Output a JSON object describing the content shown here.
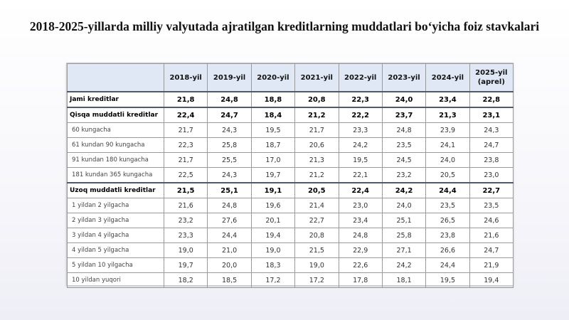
{
  "title": "2018-2025-yillarda milliy valyutada ajratilgan kreditlarning muddatlari bo‘yicha foiz stavkalari",
  "table": {
    "columns": [
      "2018-yil",
      "2019-yil",
      "2020-yil",
      "2021-yil",
      "2022-yil",
      "2023-yil",
      "2024-yil"
    ],
    "last_column": {
      "line1": "2025-yil",
      "line2": "(aprel)"
    },
    "rows": [
      {
        "label": "Jami kreditlar",
        "type": "total",
        "values": [
          "21,8",
          "24,8",
          "18,8",
          "20,8",
          "22,3",
          "24,0",
          "23,4",
          "22,8"
        ]
      },
      {
        "label": "Qisqa muddatli kreditlar",
        "type": "section",
        "values": [
          "22,4",
          "24,7",
          "18,4",
          "21,2",
          "22,2",
          "23,7",
          "21,3",
          "23,1"
        ]
      },
      {
        "label": "60 kungacha",
        "type": "item",
        "values": [
          "21,7",
          "24,3",
          "19,5",
          "21,7",
          "23,3",
          "24,8",
          "23,9",
          "24,3"
        ]
      },
      {
        "label": "61 kundan 90 kungacha",
        "type": "item",
        "values": [
          "22,3",
          "25,8",
          "18,7",
          "20,6",
          "24,2",
          "23,5",
          "24,1",
          "24,7"
        ]
      },
      {
        "label": "91 kundan 180 kungacha",
        "type": "item",
        "values": [
          "21,7",
          "25,5",
          "17,0",
          "21,3",
          "19,5",
          "24,5",
          "24,0",
          "23,8"
        ]
      },
      {
        "label": "181 kundan 365 kungacha",
        "type": "item",
        "values": [
          "22,5",
          "24,3",
          "19,7",
          "21,2",
          "22,1",
          "23,2",
          "20,5",
          "23,0"
        ]
      },
      {
        "label": "Uzoq muddatli kreditlar",
        "type": "section",
        "values": [
          "21,5",
          "25,1",
          "19,1",
          "20,5",
          "22,4",
          "24,2",
          "24,4",
          "22,7"
        ]
      },
      {
        "label": "1 yildan 2 yilgacha",
        "type": "item",
        "values": [
          "21,6",
          "24,8",
          "19,6",
          "21,4",
          "23,0",
          "24,0",
          "23,5",
          "23,5"
        ]
      },
      {
        "label": "2 yildan 3 yilgacha",
        "type": "item",
        "values": [
          "23,2",
          "27,6",
          "20,1",
          "22,7",
          "23,4",
          "25,1",
          "26,5",
          "24,6"
        ]
      },
      {
        "label": "3 yildan 4 yilgacha",
        "type": "item",
        "values": [
          "23,3",
          "24,4",
          "19,4",
          "20,8",
          "24,8",
          "25,8",
          "23,8",
          "21,6"
        ]
      },
      {
        "label": "4 yildan 5 yilgacha",
        "type": "item",
        "values": [
          "19,0",
          "21,0",
          "19,0",
          "21,5",
          "22,9",
          "27,1",
          "26,6",
          "24,7"
        ]
      },
      {
        "label": "5 yildan 10 yilgacha",
        "type": "item",
        "values": [
          "19,7",
          "20,0",
          "18,3",
          "19,0",
          "22,6",
          "24,2",
          "24,4",
          "21,9"
        ]
      },
      {
        "label": "10 yildan yuqori",
        "type": "item",
        "values": [
          "18,2",
          "18,5",
          "17,2",
          "17,2",
          "17,8",
          "18,1",
          "19,5",
          "19,4"
        ]
      }
    ]
  }
}
